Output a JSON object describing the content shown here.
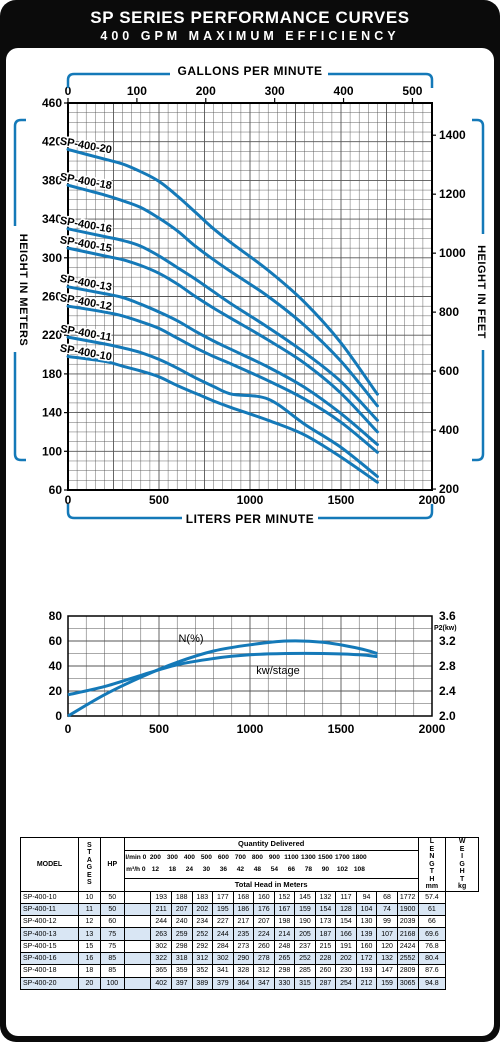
{
  "header": {
    "title": "SP SERIES PERFORMANCE CURVES",
    "subtitle": "400 GPM MAXIMUM EFFICIENCY"
  },
  "colors": {
    "curve": "#1479b8",
    "grid": "#555555",
    "frame": "#0b0b0b",
    "row_shade": "#d9e6f4"
  },
  "chart_data": [
    {
      "type": "line",
      "title": "",
      "top_axis_label": "GALLONS PER MINUTE",
      "top_ticks": [
        "0",
        "100",
        "200",
        "300",
        "400",
        "500"
      ],
      "xlabel": "LITERS PER MINUTE",
      "xlim": [
        0,
        2000
      ],
      "x_ticks": [
        "0",
        "500",
        "1000",
        "1500",
        "2000"
      ],
      "ylabel": "HEIGHT IN METERS",
      "ylim": [
        60,
        460
      ],
      "y_ticks": [
        "60",
        "100",
        "140",
        "180",
        "220",
        "260",
        "300",
        "340",
        "380",
        "420",
        "460"
      ],
      "right_label": "HEIGHT IN FEET",
      "right_ticks": [
        "200",
        "400",
        "600",
        "800",
        "1000",
        "1200",
        "1400"
      ],
      "grid": true,
      "series": [
        {
          "name": "SP-400-20",
          "x": [
            0,
            200,
            300,
            400,
            500,
            600,
            700,
            800,
            900,
            1100,
            1300,
            1500,
            1700
          ],
          "y": [
            412,
            402,
            397,
            389,
            379,
            364,
            347,
            330,
            315,
            287,
            254,
            212,
            159
          ]
        },
        {
          "name": "SP-400-18",
          "x": [
            0,
            200,
            300,
            400,
            500,
            600,
            700,
            800,
            900,
            1100,
            1300,
            1500,
            1700
          ],
          "y": [
            375,
            365,
            359,
            352,
            341,
            328,
            312,
            298,
            285,
            260,
            230,
            193,
            147
          ]
        },
        {
          "name": "SP-400-16",
          "x": [
            0,
            200,
            300,
            400,
            500,
            600,
            700,
            800,
            900,
            1100,
            1300,
            1500,
            1700
          ],
          "y": [
            330,
            322,
            318,
            312,
            302,
            290,
            278,
            265,
            252,
            228,
            202,
            172,
            132
          ]
        },
        {
          "name": "SP-400-15",
          "x": [
            0,
            200,
            300,
            400,
            500,
            600,
            700,
            800,
            900,
            1100,
            1300,
            1500,
            1700
          ],
          "y": [
            310,
            302,
            298,
            292,
            284,
            273,
            260,
            248,
            237,
            215,
            191,
            160,
            120
          ]
        },
        {
          "name": "SP-400-13",
          "x": [
            0,
            200,
            300,
            400,
            500,
            600,
            700,
            800,
            900,
            1100,
            1300,
            1500,
            1700
          ],
          "y": [
            270,
            263,
            259,
            252,
            244,
            235,
            224,
            214,
            205,
            187,
            166,
            139,
            107
          ]
        },
        {
          "name": "SP-400-12",
          "x": [
            0,
            200,
            300,
            400,
            500,
            600,
            700,
            800,
            900,
            1100,
            1300,
            1500,
            1700
          ],
          "y": [
            250,
            244,
            240,
            234,
            227,
            217,
            207,
            198,
            190,
            173,
            154,
            130,
            99
          ]
        },
        {
          "name": "SP-400-11",
          "x": [
            0,
            200,
            300,
            400,
            500,
            600,
            700,
            800,
            900,
            1100,
            1300,
            1500,
            1700
          ],
          "y": [
            218,
            211,
            207,
            202,
            195,
            186,
            176,
            167,
            159,
            154,
            128,
            104,
            74
          ]
        },
        {
          "name": "SP-400-10",
          "x": [
            0,
            200,
            300,
            400,
            500,
            600,
            700,
            800,
            900,
            1100,
            1300,
            1500,
            1700
          ],
          "y": [
            198,
            193,
            188,
            183,
            177,
            168,
            160,
            152,
            145,
            132,
            117,
            94,
            68
          ]
        }
      ]
    },
    {
      "type": "line",
      "title": "",
      "xlabel": "",
      "xlim": [
        0,
        2000
      ],
      "x_ticks": [
        "0",
        "500",
        "1000",
        "1500",
        "2000"
      ],
      "ylim": [
        0,
        80
      ],
      "y_ticks": [
        "0",
        "20",
        "40",
        "60",
        "80"
      ],
      "right_unit_label": "P2(kw)",
      "right_ylim": [
        2.0,
        3.6
      ],
      "right_ticks": [
        "2.0",
        "2.4",
        "2.8",
        "3.2",
        "3.6"
      ],
      "grid": true,
      "series": [
        {
          "name": "N(%)",
          "axis": "left",
          "x": [
            0,
            200,
            400,
            600,
            800,
            1000,
            1200,
            1400,
            1600,
            1700
          ],
          "y": [
            0,
            17,
            31,
            43,
            52,
            57,
            60,
            59,
            54,
            50
          ]
        },
        {
          "name": "kw/stage",
          "axis": "right",
          "x": [
            0,
            200,
            400,
            600,
            800,
            1000,
            1200,
            1400,
            1600,
            1700
          ],
          "y": [
            2.34,
            2.47,
            2.65,
            2.82,
            2.92,
            2.98,
            3.0,
            3.0,
            2.98,
            2.95
          ]
        }
      ]
    },
    {
      "type": "table",
      "headers": {
        "model": "MODEL",
        "stages": "STAGES",
        "hp": "HP",
        "quantity": "Quantity Delivered",
        "lmin_label": "l/min",
        "m3h_label": "m³/h",
        "head_label": "Total Head in Meters",
        "length": "LENGTH",
        "length_unit": "mm",
        "weight": "WEIGHT",
        "weight_unit": "kg"
      },
      "flow_lmin": [
        "0",
        "200",
        "300",
        "400",
        "500",
        "600",
        "700",
        "800",
        "900",
        "1100",
        "1300",
        "1500",
        "1700",
        "1800"
      ],
      "flow_m3h": [
        "0",
        "12",
        "18",
        "24",
        "30",
        "36",
        "42",
        "48",
        "54",
        "66",
        "78",
        "90",
        "102",
        "108"
      ],
      "rows": [
        {
          "model": "SP-400-10",
          "stages": "10",
          "hp": "50",
          "heads": [
            "",
            "193",
            "188",
            "183",
            "177",
            "168",
            "160",
            "152",
            "145",
            "132",
            "117",
            "94",
            "68",
            ""
          ],
          "length": "1772",
          "weight": "57.4"
        },
        {
          "model": "SP-400-11",
          "stages": "11",
          "hp": "50",
          "heads": [
            "",
            "211",
            "207",
            "202",
            "195",
            "186",
            "176",
            "167",
            "159",
            "154",
            "128",
            "104",
            "74",
            ""
          ],
          "length": "1900",
          "weight": "61"
        },
        {
          "model": "SP-400-12",
          "stages": "12",
          "hp": "60",
          "heads": [
            "",
            "244",
            "240",
            "234",
            "227",
            "217",
            "207",
            "198",
            "190",
            "173",
            "154",
            "130",
            "99",
            ""
          ],
          "length": "2039",
          "weight": "66"
        },
        {
          "model": "SP-400-13",
          "stages": "13",
          "hp": "75",
          "heads": [
            "",
            "263",
            "259",
            "252",
            "244",
            "235",
            "224",
            "214",
            "205",
            "187",
            "166",
            "139",
            "107",
            ""
          ],
          "length": "2168",
          "weight": "69.6"
        },
        {
          "model": "SP-400-15",
          "stages": "15",
          "hp": "75",
          "heads": [
            "",
            "302",
            "298",
            "292",
            "284",
            "273",
            "260",
            "248",
            "237",
            "215",
            "191",
            "160",
            "120",
            ""
          ],
          "length": "2424",
          "weight": "76.8"
        },
        {
          "model": "SP-400-16",
          "stages": "16",
          "hp": "85",
          "heads": [
            "",
            "322",
            "318",
            "312",
            "302",
            "290",
            "278",
            "265",
            "252",
            "228",
            "202",
            "172",
            "132",
            ""
          ],
          "length": "2552",
          "weight": "80.4"
        },
        {
          "model": "SP-400-18",
          "stages": "18",
          "hp": "85",
          "heads": [
            "",
            "365",
            "359",
            "352",
            "341",
            "328",
            "312",
            "298",
            "285",
            "260",
            "230",
            "193",
            "147",
            ""
          ],
          "length": "2809",
          "weight": "87.6"
        },
        {
          "model": "SP-400-20",
          "stages": "20",
          "hp": "100",
          "heads": [
            "",
            "402",
            "397",
            "389",
            "379",
            "364",
            "347",
            "330",
            "315",
            "287",
            "254",
            "212",
            "159",
            ""
          ],
          "length": "3065",
          "weight": "94.8"
        }
      ]
    }
  ]
}
